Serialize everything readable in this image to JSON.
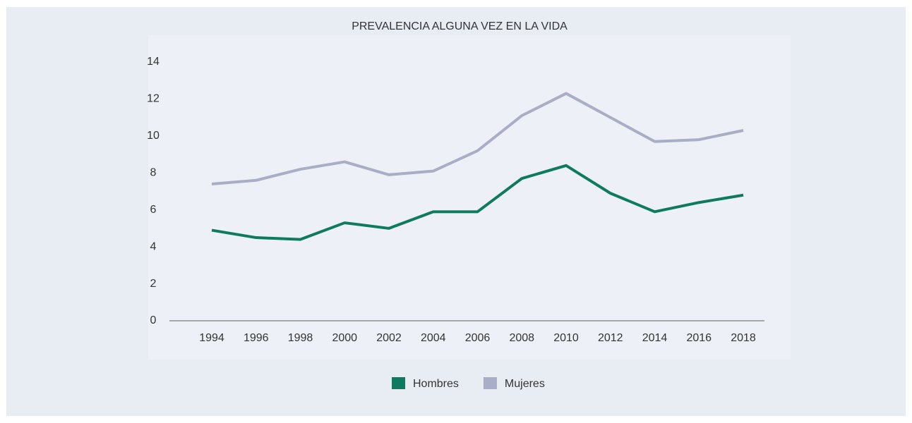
{
  "chart_data": {
    "type": "line",
    "title": "PREVALENCIA ALGUNA VEZ EN LA VIDA",
    "categories": [
      "1994",
      "1996",
      "1998",
      "2000",
      "2002",
      "2004",
      "2006",
      "2008",
      "2010",
      "2012",
      "2014",
      "2016",
      "2018"
    ],
    "series": [
      {
        "name": "Hombres",
        "color": "#0e7a60",
        "values": [
          4.9,
          4.5,
          4.4,
          5.3,
          5.0,
          5.9,
          5.9,
          7.7,
          8.4,
          6.9,
          5.9,
          6.4,
          6.8
        ]
      },
      {
        "name": "Mujeres",
        "color": "#a9adc6",
        "values": [
          7.4,
          7.6,
          8.2,
          8.6,
          7.9,
          8.1,
          9.2,
          11.1,
          12.3,
          11.0,
          9.7,
          9.8,
          10.3
        ]
      }
    ],
    "ylim": [
      0,
      14
    ],
    "yticks": [
      0,
      2,
      4,
      6,
      8,
      10,
      12,
      14
    ],
    "grid": false,
    "legend": "bottom"
  }
}
